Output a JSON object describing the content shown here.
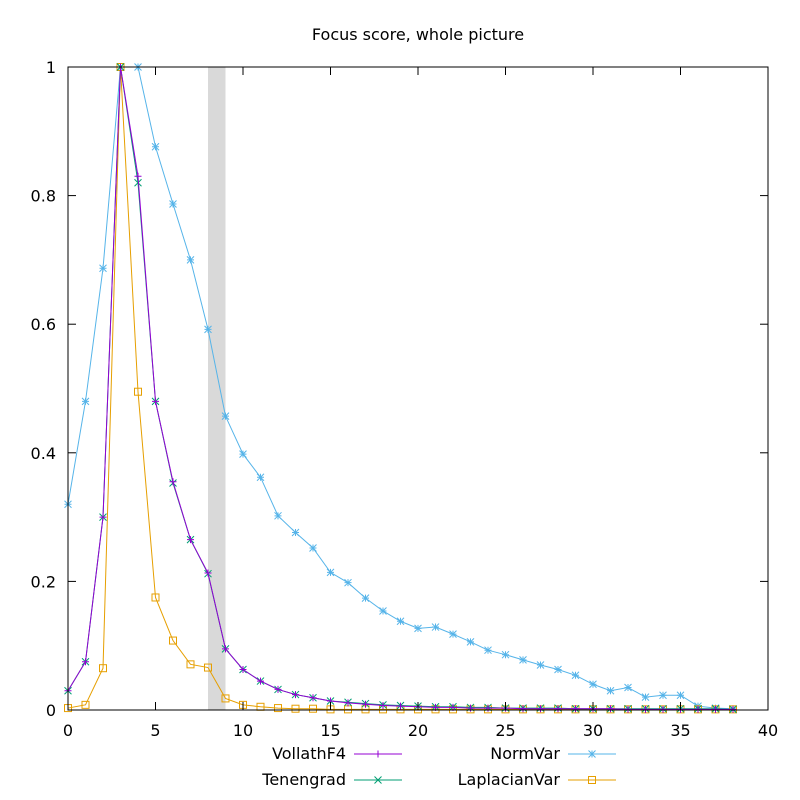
{
  "chart_data": {
    "type": "line",
    "title": "Focus score, whole picture",
    "xlabel": "",
    "ylabel": "",
    "xlim": [
      0,
      40
    ],
    "ylim": [
      0,
      1
    ],
    "xticks": [
      0,
      5,
      10,
      15,
      20,
      25,
      30,
      35,
      40
    ],
    "yticks": [
      0,
      0.2,
      0.4,
      0.6,
      0.8,
      1
    ],
    "grid": false,
    "legend_position": "bottom",
    "highlight_band": {
      "x0": 8,
      "x1": 9,
      "color": "#d9d9d9"
    },
    "x": [
      0,
      1,
      2,
      3,
      4,
      5,
      6,
      7,
      8,
      9,
      10,
      11,
      12,
      13,
      14,
      15,
      16,
      17,
      18,
      19,
      20,
      21,
      22,
      23,
      24,
      25,
      26,
      27,
      28,
      29,
      30,
      31,
      32,
      33,
      34,
      35,
      36,
      37,
      38
    ],
    "series": [
      {
        "name": "VollathF4",
        "color": "#9400d3",
        "marker": "plus",
        "values": [
          0.03,
          0.075,
          0.3,
          1.0,
          0.83,
          0.48,
          0.355,
          0.265,
          0.213,
          0.095,
          0.063,
          0.045,
          0.032,
          0.024,
          0.019,
          0.014,
          0.011,
          0.009,
          0.007,
          0.006,
          0.005,
          0.004,
          0.004,
          0.003,
          0.003,
          0.003,
          0.002,
          0.002,
          0.002,
          0.002,
          0.002,
          0.002,
          0.001,
          0.001,
          0.001,
          0.001,
          0.001,
          0.001,
          0.001
        ]
      },
      {
        "name": "Tenengrad",
        "color": "#009e73",
        "marker": "x",
        "values": [
          0.03,
          0.075,
          0.3,
          1.0,
          0.82,
          0.48,
          0.353,
          0.265,
          0.212,
          0.095,
          0.063,
          0.045,
          0.032,
          0.024,
          0.019,
          0.014,
          0.012,
          0.01,
          0.008,
          0.007,
          0.006,
          0.005,
          0.005,
          0.004,
          0.004,
          0.003,
          0.003,
          0.003,
          0.003,
          0.002,
          0.002,
          0.002,
          0.002,
          0.002,
          0.002,
          0.002,
          0.002,
          0.002,
          0.001
        ]
      },
      {
        "name": "NormVar",
        "color": "#56b4e9",
        "marker": "star",
        "values": [
          0.32,
          0.48,
          0.687,
          1.0,
          1.0,
          0.876,
          0.787,
          0.7,
          0.592,
          0.457,
          0.398,
          0.362,
          0.302,
          0.276,
          0.252,
          0.214,
          0.198,
          0.174,
          0.154,
          0.138,
          0.127,
          0.129,
          0.118,
          0.106,
          0.093,
          0.086,
          0.078,
          0.07,
          0.063,
          0.054,
          0.04,
          0.03,
          0.035,
          0.02,
          0.023,
          0.023,
          0.006,
          0.003,
          0.002
        ]
      },
      {
        "name": "LaplacianVar",
        "color": "#e69f00",
        "marker": "square",
        "values": [
          0.003,
          0.008,
          0.065,
          1.0,
          0.495,
          0.175,
          0.108,
          0.071,
          0.066,
          0.018,
          0.008,
          0.005,
          0.003,
          0.002,
          0.002,
          0.001,
          0.001,
          0.001,
          0.001,
          0.001,
          0.001,
          0.001,
          0.001,
          0.001,
          0.001,
          0.001,
          0.001,
          0.001,
          0.001,
          0.001,
          0.001,
          0.001,
          0.001,
          0.001,
          0.001,
          0.001,
          0.001,
          0.001,
          0.001
        ]
      }
    ]
  }
}
